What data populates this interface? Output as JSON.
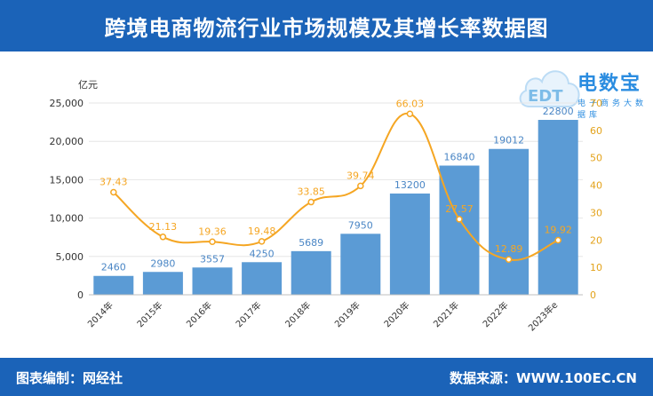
{
  "header": {
    "title": "跨境电商物流行业市场规模及其增长率数据图"
  },
  "footer": {
    "left": "图表编制：网经社",
    "right": "数据来源：WWW.100EC.CN"
  },
  "logo": {
    "brand": "电数宝",
    "sub": "电子商务大数据库",
    "mark": "EDT"
  },
  "colors": {
    "header": "#1b63b8",
    "bar": "#5b9bd5",
    "line": "#f5a623",
    "bar_label": "#4a86c5",
    "right_axis": "#e3a21a"
  },
  "chart_data": {
    "type": "bar+line",
    "categories": [
      "2014年",
      "2015年",
      "2016年",
      "2017年",
      "2018年",
      "2019年",
      "2020年",
      "2021年",
      "2022年",
      "2023年e"
    ],
    "series": [
      {
        "type": "bar",
        "axis": "left",
        "values": [
          2460,
          2980,
          3557,
          4250,
          5689,
          7950,
          13200,
          16840,
          19012,
          22800
        ]
      },
      {
        "type": "line",
        "axis": "right",
        "values": [
          37.43,
          21.13,
          19.36,
          19.48,
          33.85,
          39.74,
          66.03,
          27.57,
          12.89,
          19.92
        ]
      }
    ],
    "y_unit": "亿元",
    "ylim": [
      0,
      25000
    ],
    "yticks": [
      0,
      5000,
      10000,
      15000,
      20000,
      25000
    ],
    "ytick_labels": [
      "0",
      "5,000",
      "10,000",
      "15,000",
      "20,000",
      "25,000"
    ],
    "y2lim": [
      0,
      70
    ],
    "y2ticks": [
      0,
      10,
      20,
      30,
      40,
      50,
      60,
      70
    ],
    "grid": true
  }
}
